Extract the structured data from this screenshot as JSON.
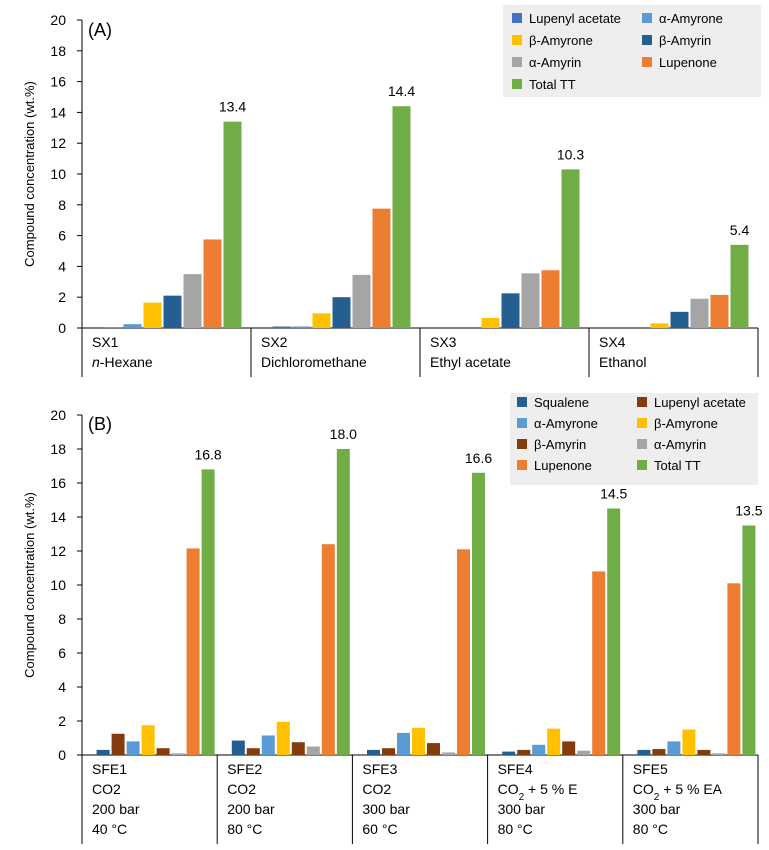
{
  "chart_data": [
    {
      "type": "bar",
      "panel_label": "(A)",
      "ylabel": "Compound concentration (wt.%)",
      "ylim": [
        0,
        20
      ],
      "yticks": [
        0,
        2,
        4,
        6,
        8,
        10,
        12,
        14,
        16,
        18,
        20
      ],
      "grid": false,
      "legend_position": "top-right",
      "categories": [
        {
          "lines": [
            {
              "text": "SX1"
            },
            {
              "text": "n",
              "italic": true,
              "suffix": "-Hexane"
            }
          ]
        },
        {
          "lines": [
            {
              "text": "SX2"
            },
            {
              "text": "Dichloromethane"
            }
          ]
        },
        {
          "lines": [
            {
              "text": "SX3"
            },
            {
              "text": "Ethyl acetate"
            }
          ]
        },
        {
          "lines": [
            {
              "text": "SX4"
            },
            {
              "text": "Ethanol"
            }
          ]
        }
      ],
      "series": [
        {
          "name": "Lupenyl acetate",
          "color": "#4472C4",
          "values": [
            0.05,
            0.1,
            0.0,
            0.0
          ]
        },
        {
          "name": "α-Amyrone",
          "color": "#5B9BD5",
          "values": [
            0.25,
            0.1,
            0.0,
            0.0
          ]
        },
        {
          "name": "β-Amyrone",
          "color": "#FFC000",
          "values": [
            1.65,
            0.95,
            0.65,
            0.3
          ]
        },
        {
          "name": "β-Amyrin",
          "color": "#255E91",
          "values": [
            2.1,
            2.0,
            2.25,
            1.05
          ]
        },
        {
          "name": "α-Amyrin",
          "color": "#A5A5A5",
          "values": [
            3.5,
            3.45,
            3.55,
            1.9
          ]
        },
        {
          "name": "Lupenone",
          "color": "#ED7D31",
          "values": [
            5.75,
            7.75,
            3.75,
            2.15
          ]
        },
        {
          "name": "Total TT",
          "color": "#70AD47",
          "values": [
            13.4,
            14.4,
            10.3,
            5.4
          ]
        }
      ],
      "data_labels": [
        "13.4",
        "14.4",
        "10.3",
        "5.4"
      ]
    },
    {
      "type": "bar",
      "panel_label": "(B)",
      "ylabel": "Compound concentration (wt.%)",
      "ylim": [
        0,
        20
      ],
      "yticks": [
        0,
        2,
        4,
        6,
        8,
        10,
        12,
        14,
        16,
        18,
        20
      ],
      "grid": false,
      "legend_position": "top-right",
      "categories": [
        {
          "lines": [
            {
              "text": "SFE1"
            },
            {
              "text": "CO2"
            },
            {
              "text": "200 bar"
            },
            {
              "text": "40 °C"
            }
          ]
        },
        {
          "lines": [
            {
              "text": "SFE2"
            },
            {
              "text": "CO2"
            },
            {
              "text": "200 bar"
            },
            {
              "text": "80 °C"
            }
          ]
        },
        {
          "lines": [
            {
              "text": "SFE3"
            },
            {
              "text": "CO2"
            },
            {
              "text": "300 bar"
            },
            {
              "text": "60 °C"
            }
          ]
        },
        {
          "lines": [
            {
              "text": "SFE4"
            },
            {
              "text": "CO",
              "sub": "2",
              "suffix": " + 5 % E"
            },
            {
              "text": "300 bar"
            },
            {
              "text": "80 °C"
            }
          ]
        },
        {
          "lines": [
            {
              "text": "SFE5"
            },
            {
              "text": "CO",
              "sub": "2",
              "suffix": " + 5 % EA"
            },
            {
              "text": "300 bar"
            },
            {
              "text": "80 °C"
            }
          ]
        }
      ],
      "series": [
        {
          "name": "Squalene",
          "color": "#255E91",
          "values": [
            0.3,
            0.85,
            0.3,
            0.2,
            0.3
          ]
        },
        {
          "name": "Lupenyl acetate",
          "color": "#843C0C",
          "values": [
            1.25,
            0.4,
            0.4,
            0.3,
            0.35
          ]
        },
        {
          "name": "α-Amyrone",
          "color": "#5B9BD5",
          "values": [
            0.8,
            1.15,
            1.3,
            0.6,
            0.8
          ]
        },
        {
          "name": "β-Amyrone",
          "color": "#FFC000",
          "values": [
            1.75,
            1.95,
            1.6,
            1.55,
            1.5
          ]
        },
        {
          "name": "β-Amyrin",
          "color": "#843C0C",
          "values": [
            0.4,
            0.75,
            0.7,
            0.8,
            0.3
          ]
        },
        {
          "name": "α-Amyrin",
          "color": "#A5A5A5",
          "values": [
            0.1,
            0.5,
            0.15,
            0.25,
            0.1
          ]
        },
        {
          "name": "Lupenone",
          "color": "#ED7D31",
          "values": [
            12.15,
            12.4,
            12.1,
            10.8,
            10.1
          ]
        },
        {
          "name": "Total TT",
          "color": "#70AD47",
          "values": [
            16.8,
            18.0,
            16.6,
            14.5,
            13.5
          ]
        }
      ],
      "data_labels": [
        "16.8",
        "18.0",
        "16.6",
        "14.5",
        "13.5"
      ]
    }
  ]
}
